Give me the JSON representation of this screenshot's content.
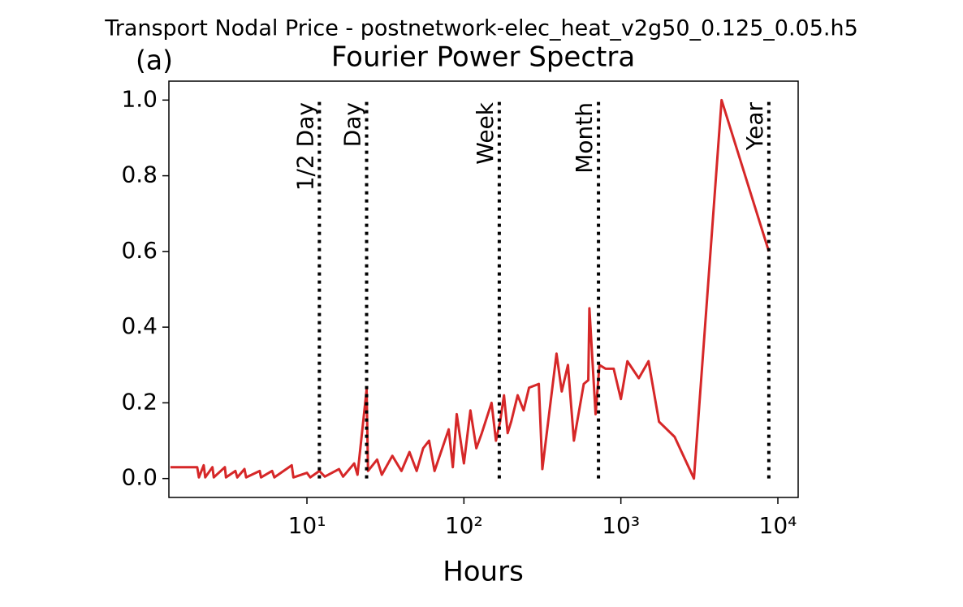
{
  "chart_data": {
    "type": "line",
    "suptitle": "Transport Nodal Price - postnetwork-elec_heat_v2g50_0.125_0.05.h5",
    "panel_label": "(a)",
    "title": "Fourier Power Spectra",
    "x_label": "Hours",
    "x_scale": "log",
    "color": "#d62728",
    "x": [
      1.35,
      2,
      2.05,
      2.2,
      2.25,
      2.5,
      2.55,
      3,
      3.05,
      3.5,
      3.6,
      4,
      4.1,
      5,
      5.1,
      6,
      6.2,
      8,
      8.2,
      10,
      10.5,
      12,
      13,
      16,
      17,
      20,
      21,
      24,
      24.5,
      28,
      30,
      35,
      40,
      45,
      50,
      55,
      60,
      65,
      80,
      85,
      90,
      100,
      110,
      120,
      130,
      150,
      160,
      170,
      180,
      190,
      200,
      220,
      240,
      260,
      300,
      316,
      389,
      420,
      460,
      502,
      580,
      620,
      630,
      690,
      730,
      800,
      900,
      1000,
      1100,
      1300,
      1500,
      1750,
      2200,
      2920,
      4380,
      8760
    ],
    "values": [
      0.03,
      0.03,
      0.003,
      0.035,
      0.003,
      0.03,
      0.003,
      0.03,
      0.003,
      0.02,
      0.003,
      0.025,
      0.003,
      0.02,
      0.003,
      0.02,
      0.003,
      0.035,
      0.003,
      0.015,
      0.003,
      0.02,
      0.005,
      0.025,
      0.005,
      0.04,
      0.01,
      0.235,
      0.02,
      0.05,
      0.01,
      0.06,
      0.02,
      0.07,
      0.02,
      0.08,
      0.1,
      0.02,
      0.13,
      0.03,
      0.17,
      0.04,
      0.18,
      0.08,
      0.12,
      0.2,
      0.1,
      0.15,
      0.22,
      0.12,
      0.15,
      0.22,
      0.18,
      0.24,
      0.25,
      0.025,
      0.33,
      0.23,
      0.3,
      0.1,
      0.25,
      0.26,
      0.45,
      0.17,
      0.3,
      0.29,
      0.29,
      0.21,
      0.31,
      0.265,
      0.31,
      0.15,
      0.11,
      0.0,
      1.0,
      0.6
    ],
    "xlim": [
      1.32,
      13470
    ],
    "xticks": [
      {
        "value": 10,
        "label": "10¹"
      },
      {
        "value": 100,
        "label": "10²"
      },
      {
        "value": 1000,
        "label": "10³"
      },
      {
        "value": 10000,
        "label": "10⁴"
      }
    ],
    "ylim": [
      -0.05,
      1.05
    ],
    "yticks": [
      {
        "value": 0,
        "label": "0.0"
      },
      0.2,
      0.4,
      0.6,
      0.8,
      {
        "value": 1,
        "label": "1.0"
      }
    ],
    "markers": [
      {
        "label": "1/2 Day",
        "value": 12
      },
      {
        "label": "Day",
        "value": 24
      },
      {
        "label": "Week",
        "value": 168
      },
      {
        "label": "Month",
        "value": 720
      },
      {
        "label": "Year",
        "value": 8760
      }
    ]
  }
}
